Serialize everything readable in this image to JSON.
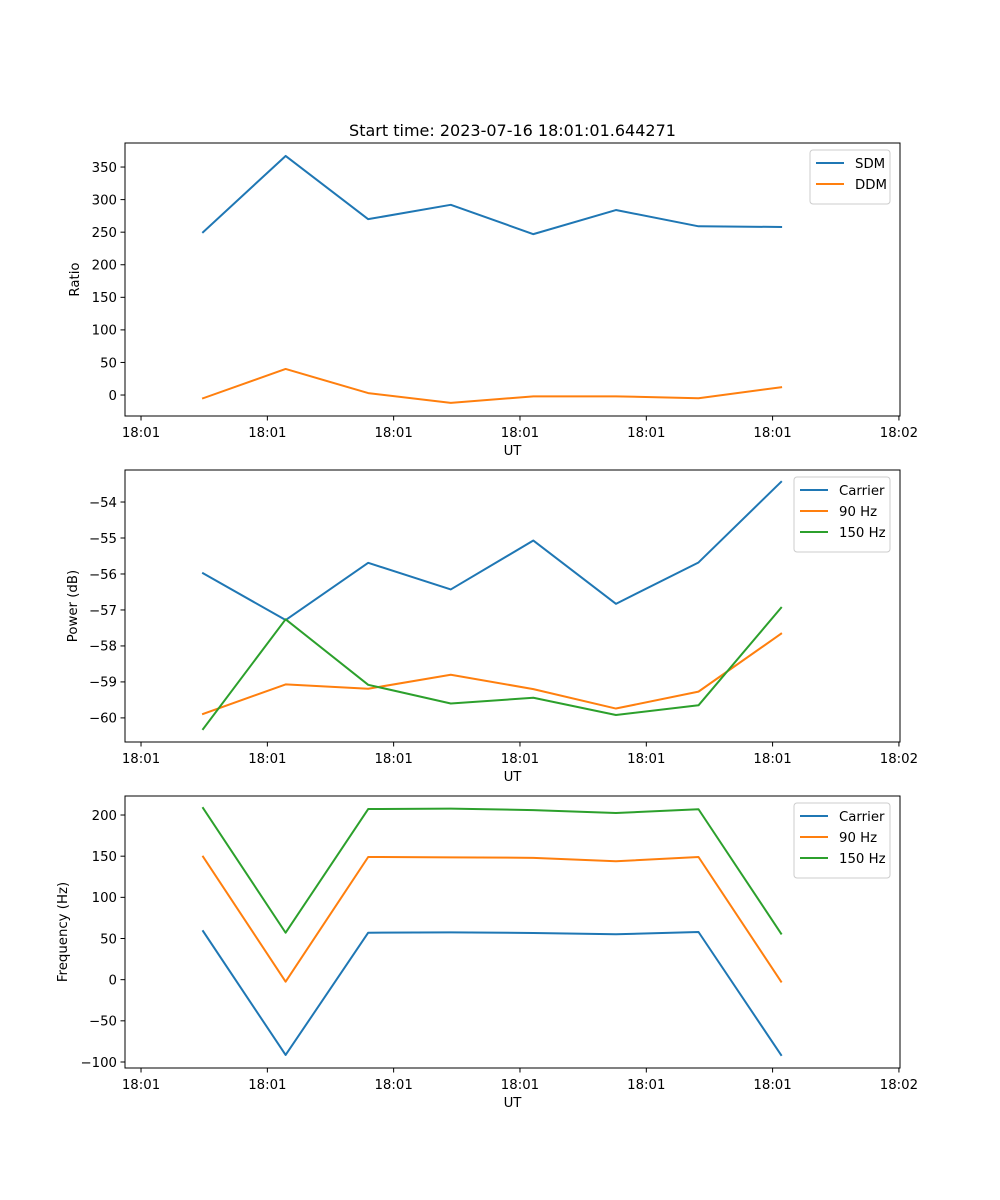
{
  "figure_title": "Start time: 2023-07-16 18:01:01.644271",
  "colors": {
    "C0": "#1f77b4",
    "C1": "#ff7f0e",
    "C2": "#2ca02c"
  },
  "chart_data": [
    {
      "type": "line",
      "title": "Start time: 2023-07-16 18:01:01.644271",
      "xlabel": "UT",
      "ylabel": "Ratio",
      "x": [
        0,
        1,
        2,
        3,
        4,
        5,
        6,
        7
      ],
      "xlim": [
        -0.945,
        8.44
      ],
      "xticks": [
        -0.751,
        0.779,
        2.308,
        3.838,
        5.368,
        6.897,
        8.427
      ],
      "xtick_labels": [
        "18:01",
        "18:01",
        "18:01",
        "18:01",
        "18:01",
        "18:01",
        "18:02"
      ],
      "ylim": [
        -32.2,
        386.9
      ],
      "yticks": [
        0,
        50,
        100,
        150,
        200,
        250,
        300,
        350
      ],
      "ytick_labels": [
        "0",
        "50",
        "100",
        "150",
        "200",
        "250",
        "300",
        "350"
      ],
      "grid": false,
      "legend_position": "top-right",
      "series": [
        {
          "name": "SDM",
          "color": "#1f77b4",
          "values": [
            250,
            367,
            270,
            292,
            247,
            284,
            259,
            258
          ]
        },
        {
          "name": "DDM",
          "color": "#ff7f0e",
          "values": [
            -5,
            40,
            3,
            -12,
            -2,
            -2,
            -5,
            12
          ]
        }
      ]
    },
    {
      "type": "line",
      "title": "",
      "xlabel": "UT",
      "ylabel": "Power (dB)",
      "x": [
        0,
        1,
        2,
        3,
        4,
        5,
        6,
        7
      ],
      "xlim": [
        -0.945,
        8.44
      ],
      "xticks": [
        -0.751,
        0.779,
        2.308,
        3.838,
        5.368,
        6.897,
        8.427
      ],
      "xtick_labels": [
        "18:01",
        "18:01",
        "18:01",
        "18:01",
        "18:01",
        "18:01",
        "18:02"
      ],
      "ylim": [
        -60.67,
        -53.11
      ],
      "yticks": [
        -60,
        -59,
        -58,
        -57,
        -56,
        -55,
        -54
      ],
      "ytick_labels": [
        "−60",
        "−59",
        "−58",
        "−57",
        "−56",
        "−55",
        "−54"
      ],
      "grid": false,
      "legend_position": "top-right",
      "series": [
        {
          "name": "Carrier",
          "color": "#1f77b4",
          "values": [
            -55.98,
            -57.28,
            -55.69,
            -56.43,
            -55.07,
            -56.83,
            -55.68,
            -53.44
          ]
        },
        {
          "name": "90 Hz",
          "color": "#ff7f0e",
          "values": [
            -59.89,
            -59.07,
            -59.19,
            -58.8,
            -59.2,
            -59.74,
            -59.27,
            -57.66
          ]
        },
        {
          "name": "150 Hz",
          "color": "#2ca02c",
          "values": [
            -60.31,
            -57.26,
            -59.08,
            -59.6,
            -59.44,
            -59.92,
            -59.65,
            -56.94
          ]
        }
      ]
    },
    {
      "type": "line",
      "title": "",
      "xlabel": "UT",
      "ylabel": "Frequency (Hz)",
      "x": [
        0,
        1,
        2,
        3,
        4,
        5,
        6,
        7
      ],
      "xlim": [
        -0.945,
        8.44
      ],
      "xticks": [
        -0.751,
        0.779,
        2.308,
        3.838,
        5.368,
        6.897,
        8.427
      ],
      "xtick_labels": [
        "18:01",
        "18:01",
        "18:01",
        "18:01",
        "18:01",
        "18:01",
        "18:02"
      ],
      "ylim": [
        -107.3,
        223.1
      ],
      "yticks": [
        -100,
        -50,
        0,
        50,
        100,
        150,
        200
      ],
      "ytick_labels": [
        "−100",
        "−50",
        "0",
        "50",
        "100",
        "150",
        "200"
      ],
      "grid": false,
      "legend_position": "top-right",
      "series": [
        {
          "name": "Carrier",
          "color": "#1f77b4",
          "values": [
            59,
            -91.5,
            57,
            57.5,
            56.7,
            55.1,
            57.9,
            -91.5
          ]
        },
        {
          "name": "90 Hz",
          "color": "#ff7f0e",
          "values": [
            149.4,
            -2.4,
            149,
            148.6,
            148,
            143.8,
            149,
            -2.4
          ]
        },
        {
          "name": "150 Hz",
          "color": "#2ca02c",
          "values": [
            208.5,
            57,
            207.3,
            207.7,
            206,
            202.4,
            207,
            56
          ]
        }
      ]
    }
  ]
}
